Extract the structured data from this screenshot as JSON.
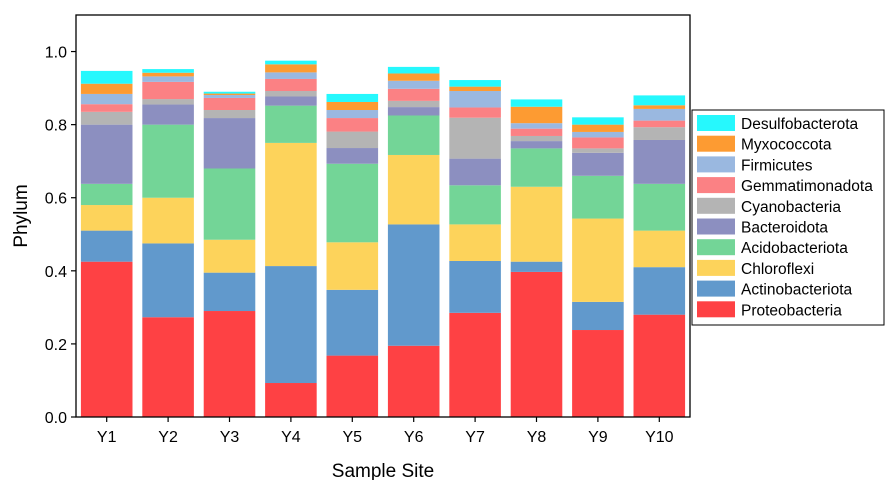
{
  "chart_data": {
    "type": "bar",
    "stacked": true,
    "title": "",
    "xlabel": "Sample Site",
    "ylabel": "Phylum",
    "ylim": [
      0,
      1.1
    ],
    "yticks": [
      "0.0",
      "0.2",
      "0.4",
      "0.6",
      "0.8",
      "1.0"
    ],
    "categories": [
      "Y1",
      "Y2",
      "Y3",
      "Y4",
      "Y5",
      "Y6",
      "Y7",
      "Y8",
      "Y9",
      "Y10"
    ],
    "legend_position": "right",
    "series": [
      {
        "name": "Proteobacteria",
        "color": "#fe4144",
        "values": [
          0.425,
          0.273,
          0.29,
          0.093,
          0.168,
          0.195,
          0.285,
          0.397,
          0.238,
          0.28
        ]
      },
      {
        "name": "Actinobacteriota",
        "color": "#6199cc",
        "values": [
          0.085,
          0.202,
          0.105,
          0.32,
          0.18,
          0.332,
          0.142,
          0.028,
          0.077,
          0.13
        ]
      },
      {
        "name": "Chloroflexi",
        "color": "#fdd35b",
        "values": [
          0.07,
          0.125,
          0.09,
          0.337,
          0.13,
          0.19,
          0.1,
          0.205,
          0.228,
          0.1
        ]
      },
      {
        "name": "Acidobacteriota",
        "color": "#73d597",
        "values": [
          0.058,
          0.2,
          0.195,
          0.102,
          0.215,
          0.108,
          0.107,
          0.105,
          0.117,
          0.128
        ]
      },
      {
        "name": "Bacteroidota",
        "color": "#8c8fc0",
        "values": [
          0.162,
          0.055,
          0.138,
          0.025,
          0.043,
          0.023,
          0.073,
          0.02,
          0.063,
          0.12
        ]
      },
      {
        "name": "Cyanobacteria",
        "color": "#b4b4b4",
        "values": [
          0.035,
          0.015,
          0.022,
          0.015,
          0.045,
          0.017,
          0.112,
          0.014,
          0.012,
          0.035
        ]
      },
      {
        "name": "Gemmatimonadota",
        "color": "#fb8184",
        "values": [
          0.021,
          0.047,
          0.033,
          0.033,
          0.037,
          0.033,
          0.028,
          0.02,
          0.03,
          0.018
        ]
      },
      {
        "name": "Firmicutes",
        "color": "#9ab8e0",
        "values": [
          0.028,
          0.015,
          0.008,
          0.018,
          0.022,
          0.022,
          0.045,
          0.015,
          0.015,
          0.032
        ]
      },
      {
        "name": "Myxococcota",
        "color": "#fd9b32",
        "values": [
          0.028,
          0.01,
          0.004,
          0.022,
          0.022,
          0.02,
          0.012,
          0.045,
          0.02,
          0.01
        ]
      },
      {
        "name": "Desulfobacterota",
        "color": "#26f8fd",
        "values": [
          0.035,
          0.01,
          0.005,
          0.01,
          0.022,
          0.018,
          0.018,
          0.02,
          0.02,
          0.027
        ]
      }
    ]
  }
}
